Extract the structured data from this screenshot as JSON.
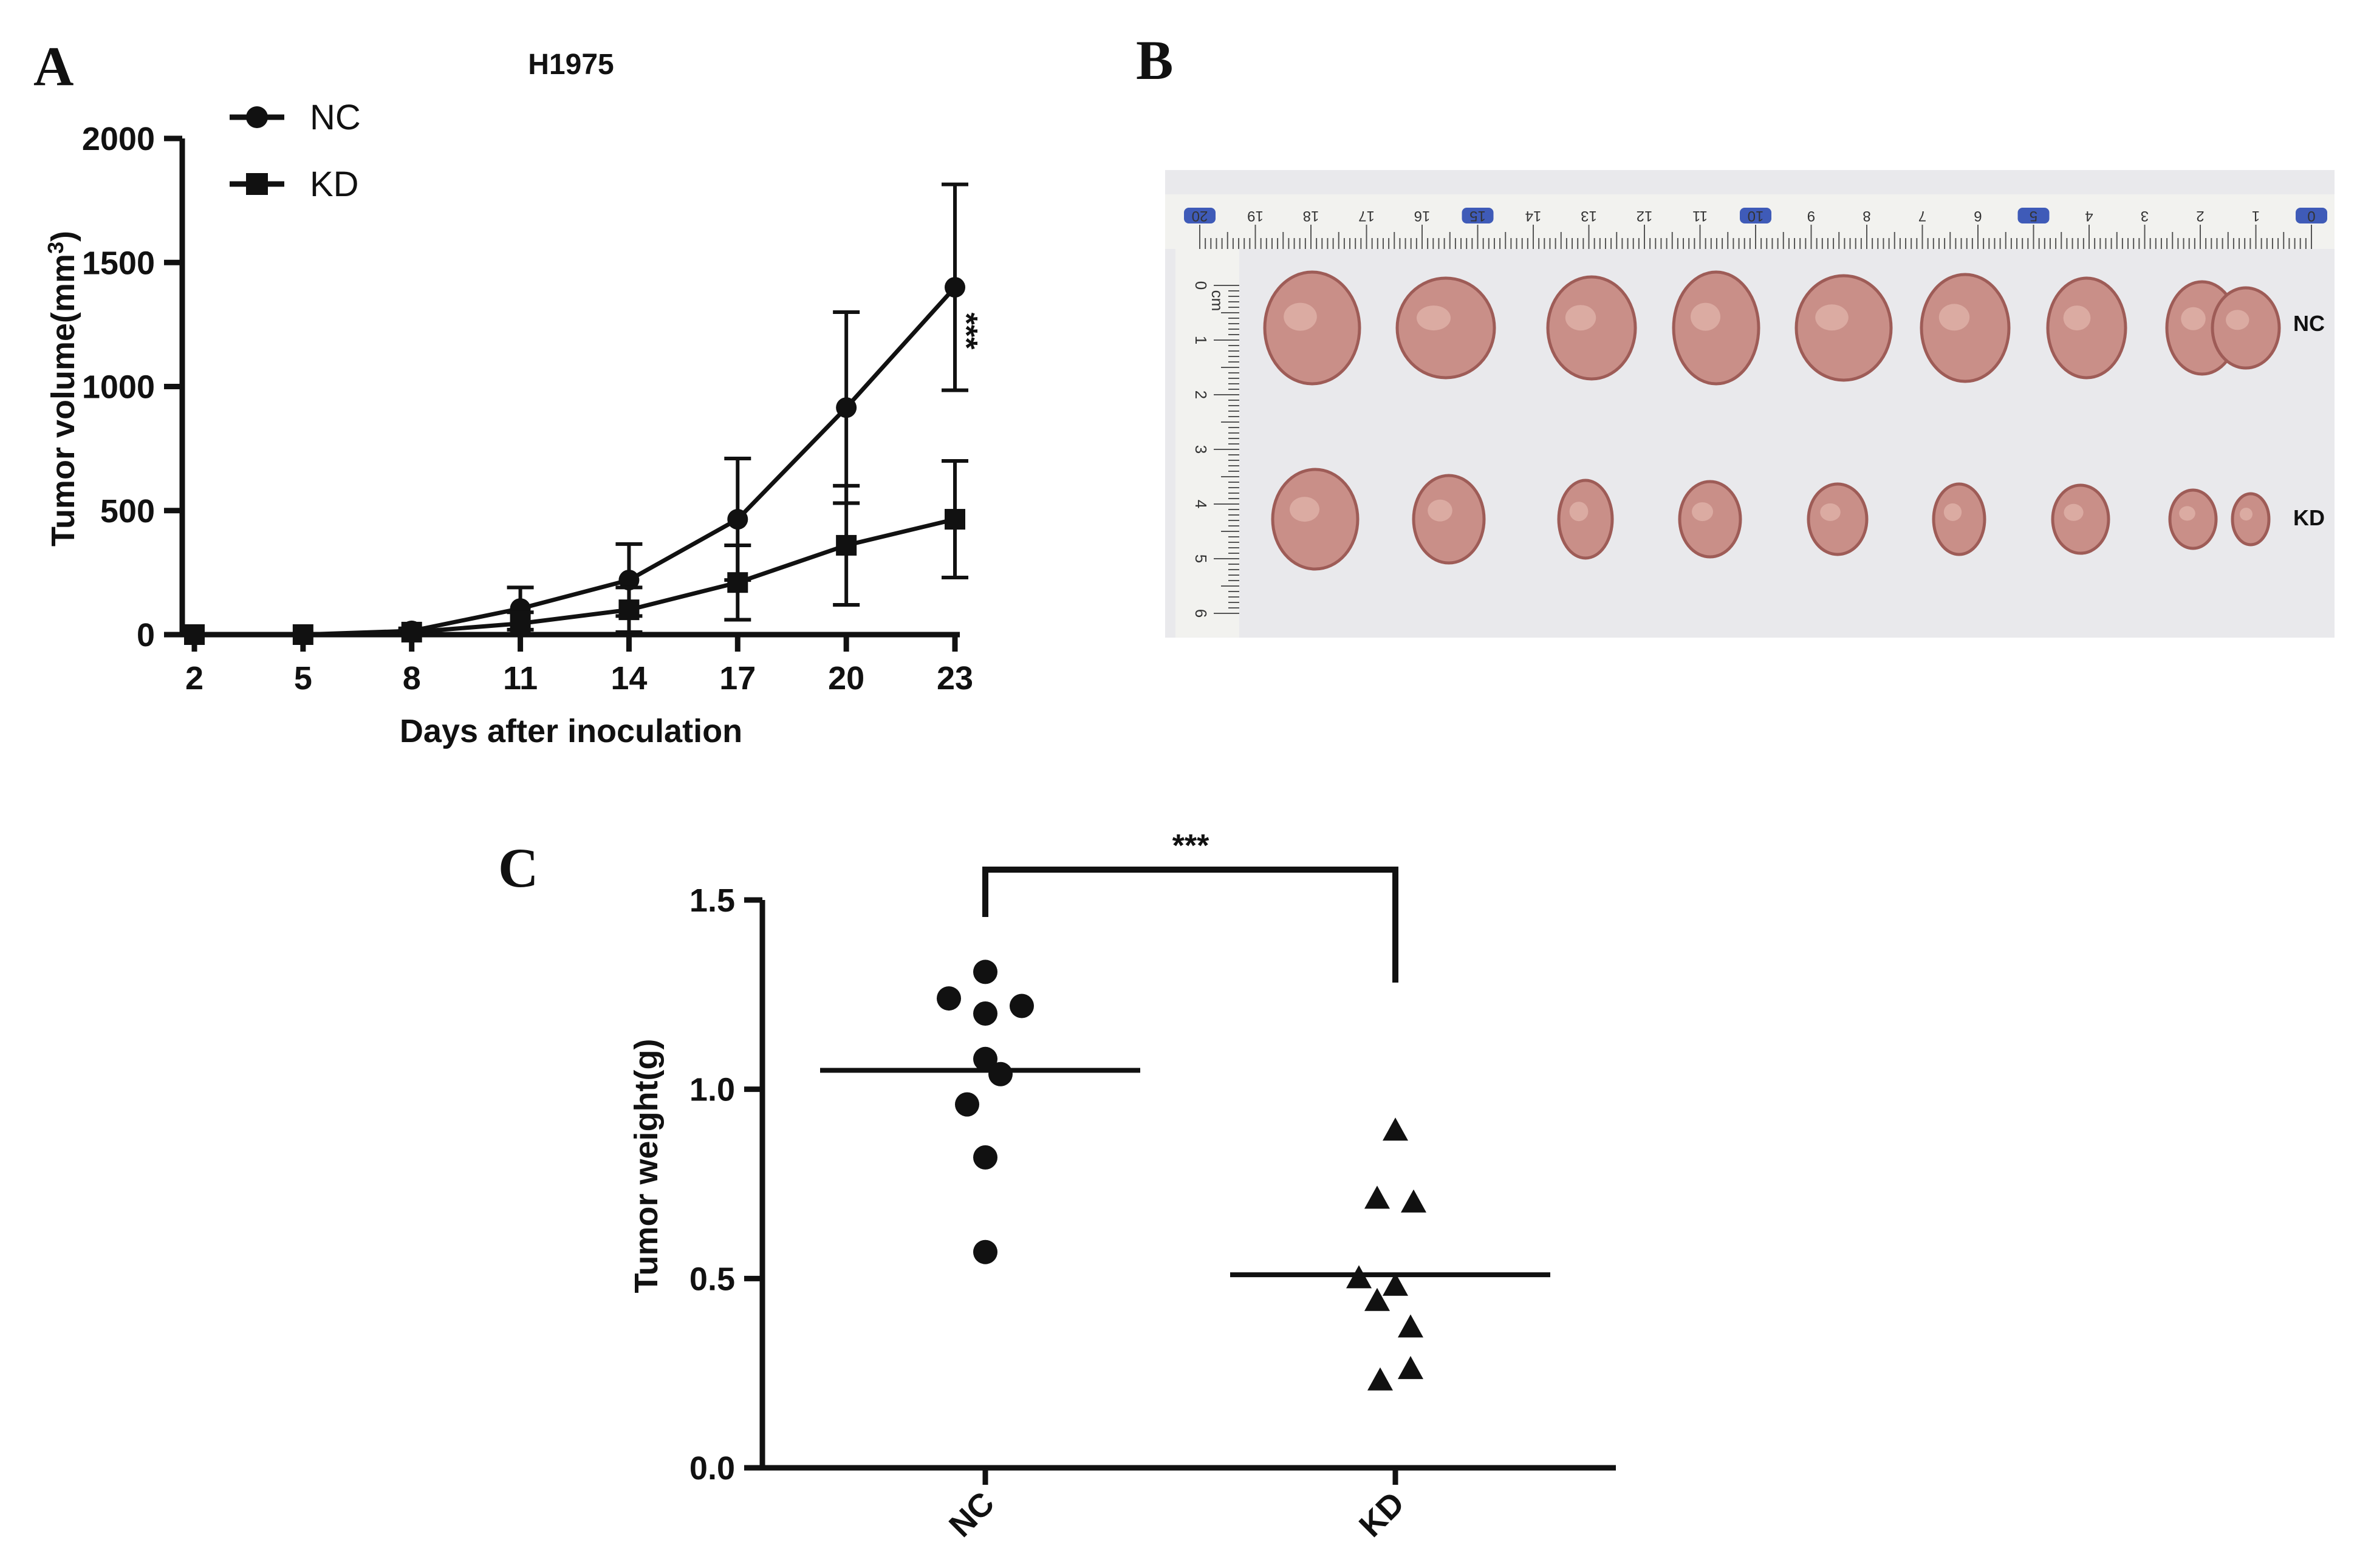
{
  "panels": {
    "a": "A",
    "b": "B",
    "c": "C"
  },
  "colors": {
    "ink": "#111111",
    "photo_background": "#e8e8ea",
    "ruler": "#f3f3f0",
    "tumor": "#c98f88",
    "tumor_dark": "#9e5c57"
  },
  "chart_data": [
    {
      "type": "line",
      "title": "H1975",
      "xlabel": "Days after inoculation",
      "ylabel": "Tumor volume(mm³)",
      "ylabel_main": "Tumor volume(mm",
      "ylabel_sup": "3",
      "ylabel_close": ")",
      "x": [
        2,
        5,
        8,
        11,
        14,
        17,
        20,
        23
      ],
      "x_tick_labels": [
        "2",
        "5",
        "8",
        "11",
        "14",
        "17",
        "20",
        "23"
      ],
      "ylim": [
        0,
        2000
      ],
      "y_ticks": [
        0,
        500,
        1000,
        1500,
        2000
      ],
      "y_tick_labels": [
        "0",
        "500",
        "1000",
        "1500",
        "2000"
      ],
      "legend_position": "top-left",
      "series": [
        {
          "name": "NC",
          "marker": "circle",
          "values": [
            0,
            0,
            15,
            105,
            220,
            465,
            915,
            1400
          ],
          "error": [
            0,
            0,
            10,
            85,
            145,
            245,
            385,
            415
          ]
        },
        {
          "name": "KD",
          "marker": "square",
          "values": [
            0,
            0,
            10,
            45,
            100,
            210,
            360,
            465
          ],
          "error": [
            0,
            0,
            8,
            45,
            90,
            150,
            240,
            235
          ]
        }
      ],
      "annotation": "***"
    },
    {
      "type": "scatter",
      "ylabel": "Tumor weight(g)",
      "categories": [
        "NC",
        "KD"
      ],
      "ylim": [
        0,
        1.5
      ],
      "y_ticks": [
        0,
        0.5,
        1.0,
        1.5
      ],
      "y_tick_labels": [
        "0.0",
        "0.5",
        "1.0",
        "1.5"
      ],
      "series": [
        {
          "name": "NC",
          "marker": "circle",
          "values": [
            1.31,
            1.24,
            1.2,
            1.22,
            1.08,
            1.04,
            0.96,
            0.82,
            0.57
          ],
          "mean": 1.05
        },
        {
          "name": "KD",
          "marker": "triangle",
          "values": [
            0.89,
            0.71,
            0.7,
            0.5,
            0.48,
            0.44,
            0.37,
            0.26,
            0.23
          ],
          "mean": 0.51
        }
      ],
      "significance": "***"
    }
  ],
  "photo": {
    "row_labels": [
      "NC",
      "KD"
    ],
    "ruler_numbers": [
      "20",
      "19",
      "18",
      "17",
      "16",
      "15",
      "14",
      "13",
      "12",
      "11",
      "10",
      "9",
      "8",
      "7",
      "6",
      "5",
      "4",
      "3",
      "2",
      "1",
      "0"
    ],
    "side_ruler_numbers": [
      "0",
      "1",
      "2",
      "3",
      "4",
      "5",
      "6"
    ],
    "side_ruler_unit": "cm"
  }
}
